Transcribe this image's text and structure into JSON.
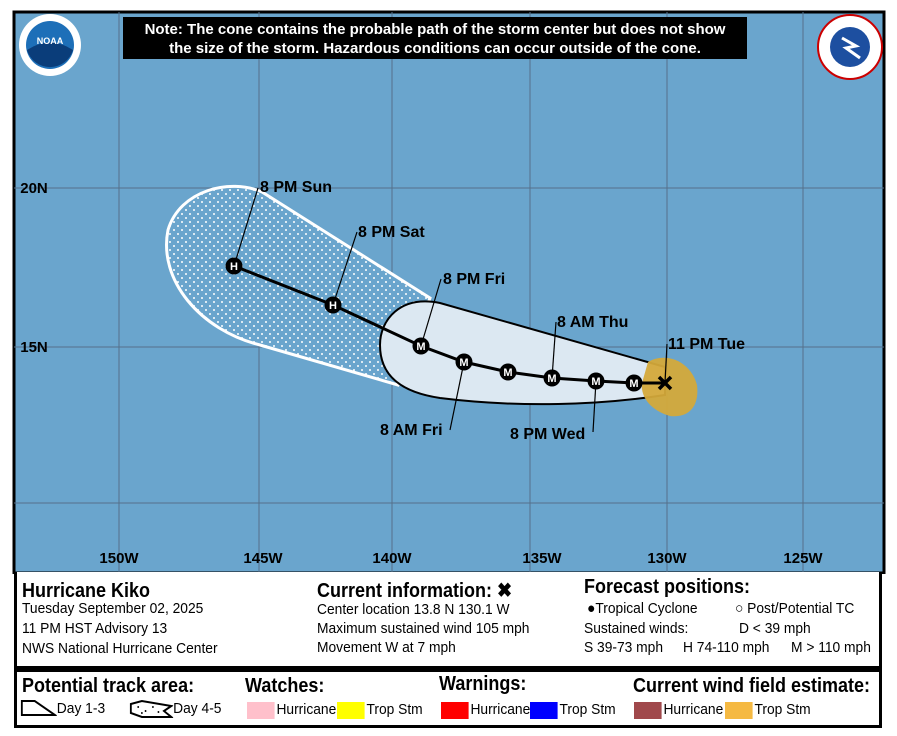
{
  "note": {
    "line1": "Note: The cone contains the probable path of the storm center but does not show",
    "line2": "the size of the storm. Hazardous conditions can occur outside of the cone."
  },
  "logos": {
    "left": "NOAA",
    "right": "NATIONAL WEATHER SERVICE"
  },
  "colors": {
    "ocean": "#6aa5cd",
    "cone": "#dce8f2",
    "trop_storm_wind": "#f5b942",
    "hurricane_wind": "#a0484b"
  },
  "axes": {
    "lon_labels": [
      "150W",
      "145W",
      "140W",
      "135W",
      "130W",
      "125W"
    ],
    "lat_labels": [
      "20N",
      "15N"
    ]
  },
  "track": {
    "current_marker": "x",
    "points": [
      {
        "symbol": "M"
      },
      {
        "symbol": "M"
      },
      {
        "symbol": "M"
      },
      {
        "symbol": "M"
      },
      {
        "symbol": "M"
      },
      {
        "symbol": "M"
      },
      {
        "symbol": "H"
      },
      {
        "symbol": "H"
      }
    ],
    "labels": [
      "11 PM Tue",
      "8 PM Wed",
      "8 AM Thu",
      "8 AM Fri",
      "8 PM Fri",
      "8 PM Sat",
      "8 PM Sun"
    ]
  },
  "info": {
    "storm_name": "Hurricane Kiko",
    "date": "Tuesday September 02, 2025",
    "advisory": "11 PM HST Advisory 13",
    "center": "NWS National Hurricane Center",
    "current_title": "Current information:",
    "current_icon": "x-icon",
    "location": "Center location 13.8 N 130.1 W",
    "max_wind": "Maximum sustained wind 105 mph",
    "movement": "Movement W at 7 mph",
    "forecast_title": "Forecast positions:",
    "tropical_cyclone": "Tropical Cyclone",
    "post_potential": "Post/Potential TC",
    "sustained": "Sustained winds:",
    "d": "D < 39 mph",
    "s": "S 39-73 mph",
    "h": "H 74-110 mph",
    "m": "M > 110 mph"
  },
  "legend": {
    "track_title": "Potential track area:",
    "day13": "Day 1-3",
    "day45": "Day 4-5",
    "watches_title": "Watches:",
    "warnings_title": "Warnings:",
    "wind_title": "Current wind field estimate:",
    "hurricane": "Hurricane",
    "trop_stm": "Trop Stm",
    "watch_colors": [
      "#ffc0cb",
      "#ffff00"
    ],
    "warning_colors": [
      "#ff0000",
      "#0000ff"
    ],
    "wind_colors": [
      "#a0484b",
      "#f5b942"
    ]
  }
}
